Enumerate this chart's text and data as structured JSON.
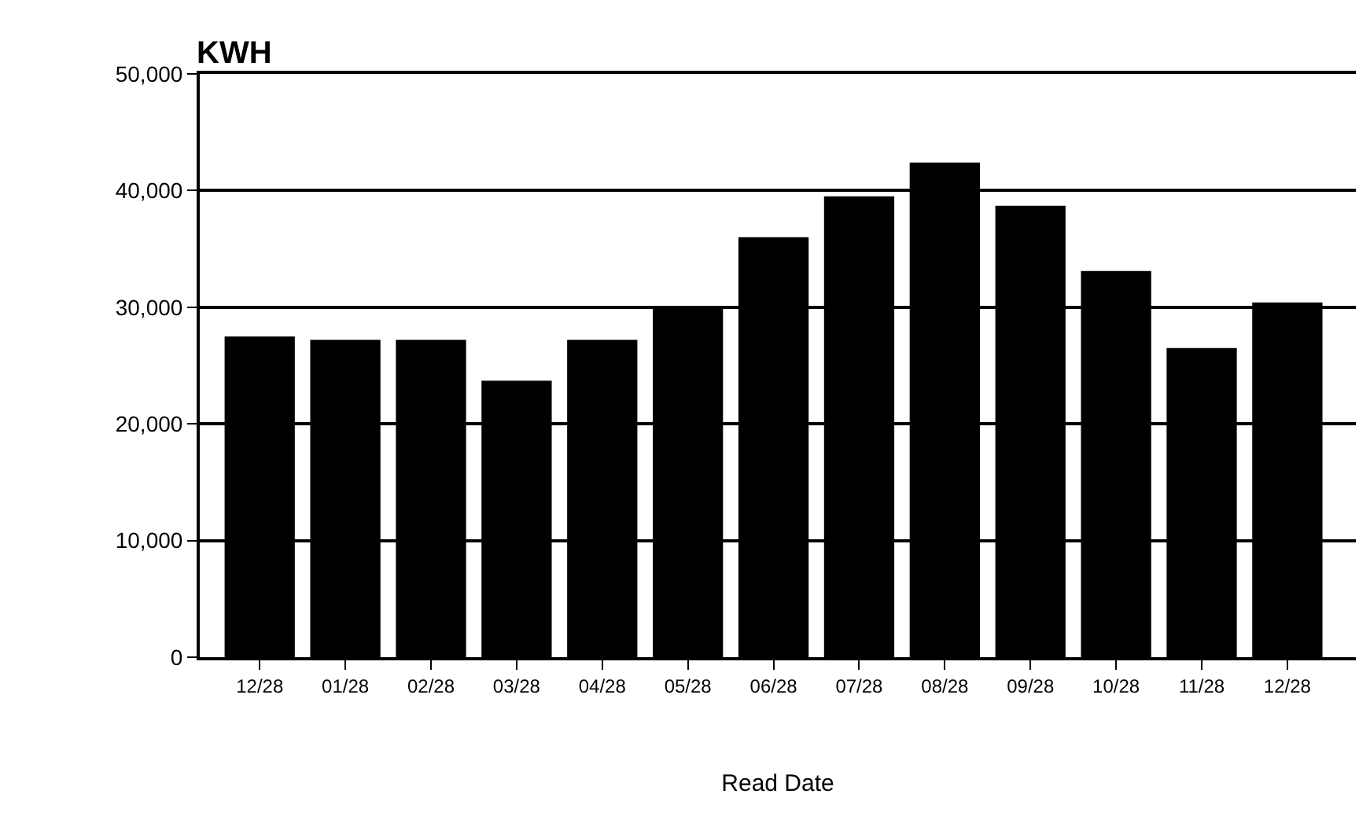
{
  "chart_data": {
    "type": "bar",
    "title": "KWH",
    "xlabel": "Read Date",
    "categories": [
      "12/28",
      "01/28",
      "02/28",
      "03/28",
      "04/28",
      "05/28",
      "06/28",
      "07/28",
      "08/28",
      "09/28",
      "10/28",
      "11/28",
      "12/28"
    ],
    "values": [
      27500,
      27200,
      27200,
      23700,
      27200,
      30000,
      36000,
      39500,
      42400,
      38700,
      33100,
      26500,
      30400
    ],
    "color": "#000000",
    "ylim": [
      0,
      50000
    ],
    "yticks": [
      {
        "value": 0,
        "label": "0"
      },
      {
        "value": 10000,
        "label": "10,000"
      },
      {
        "value": 20000,
        "label": "20,000"
      },
      {
        "value": 30000,
        "label": "30,000"
      },
      {
        "value": 40000,
        "label": "40,000"
      },
      {
        "value": 50000,
        "label": "50,000"
      }
    ],
    "grid": "y"
  }
}
